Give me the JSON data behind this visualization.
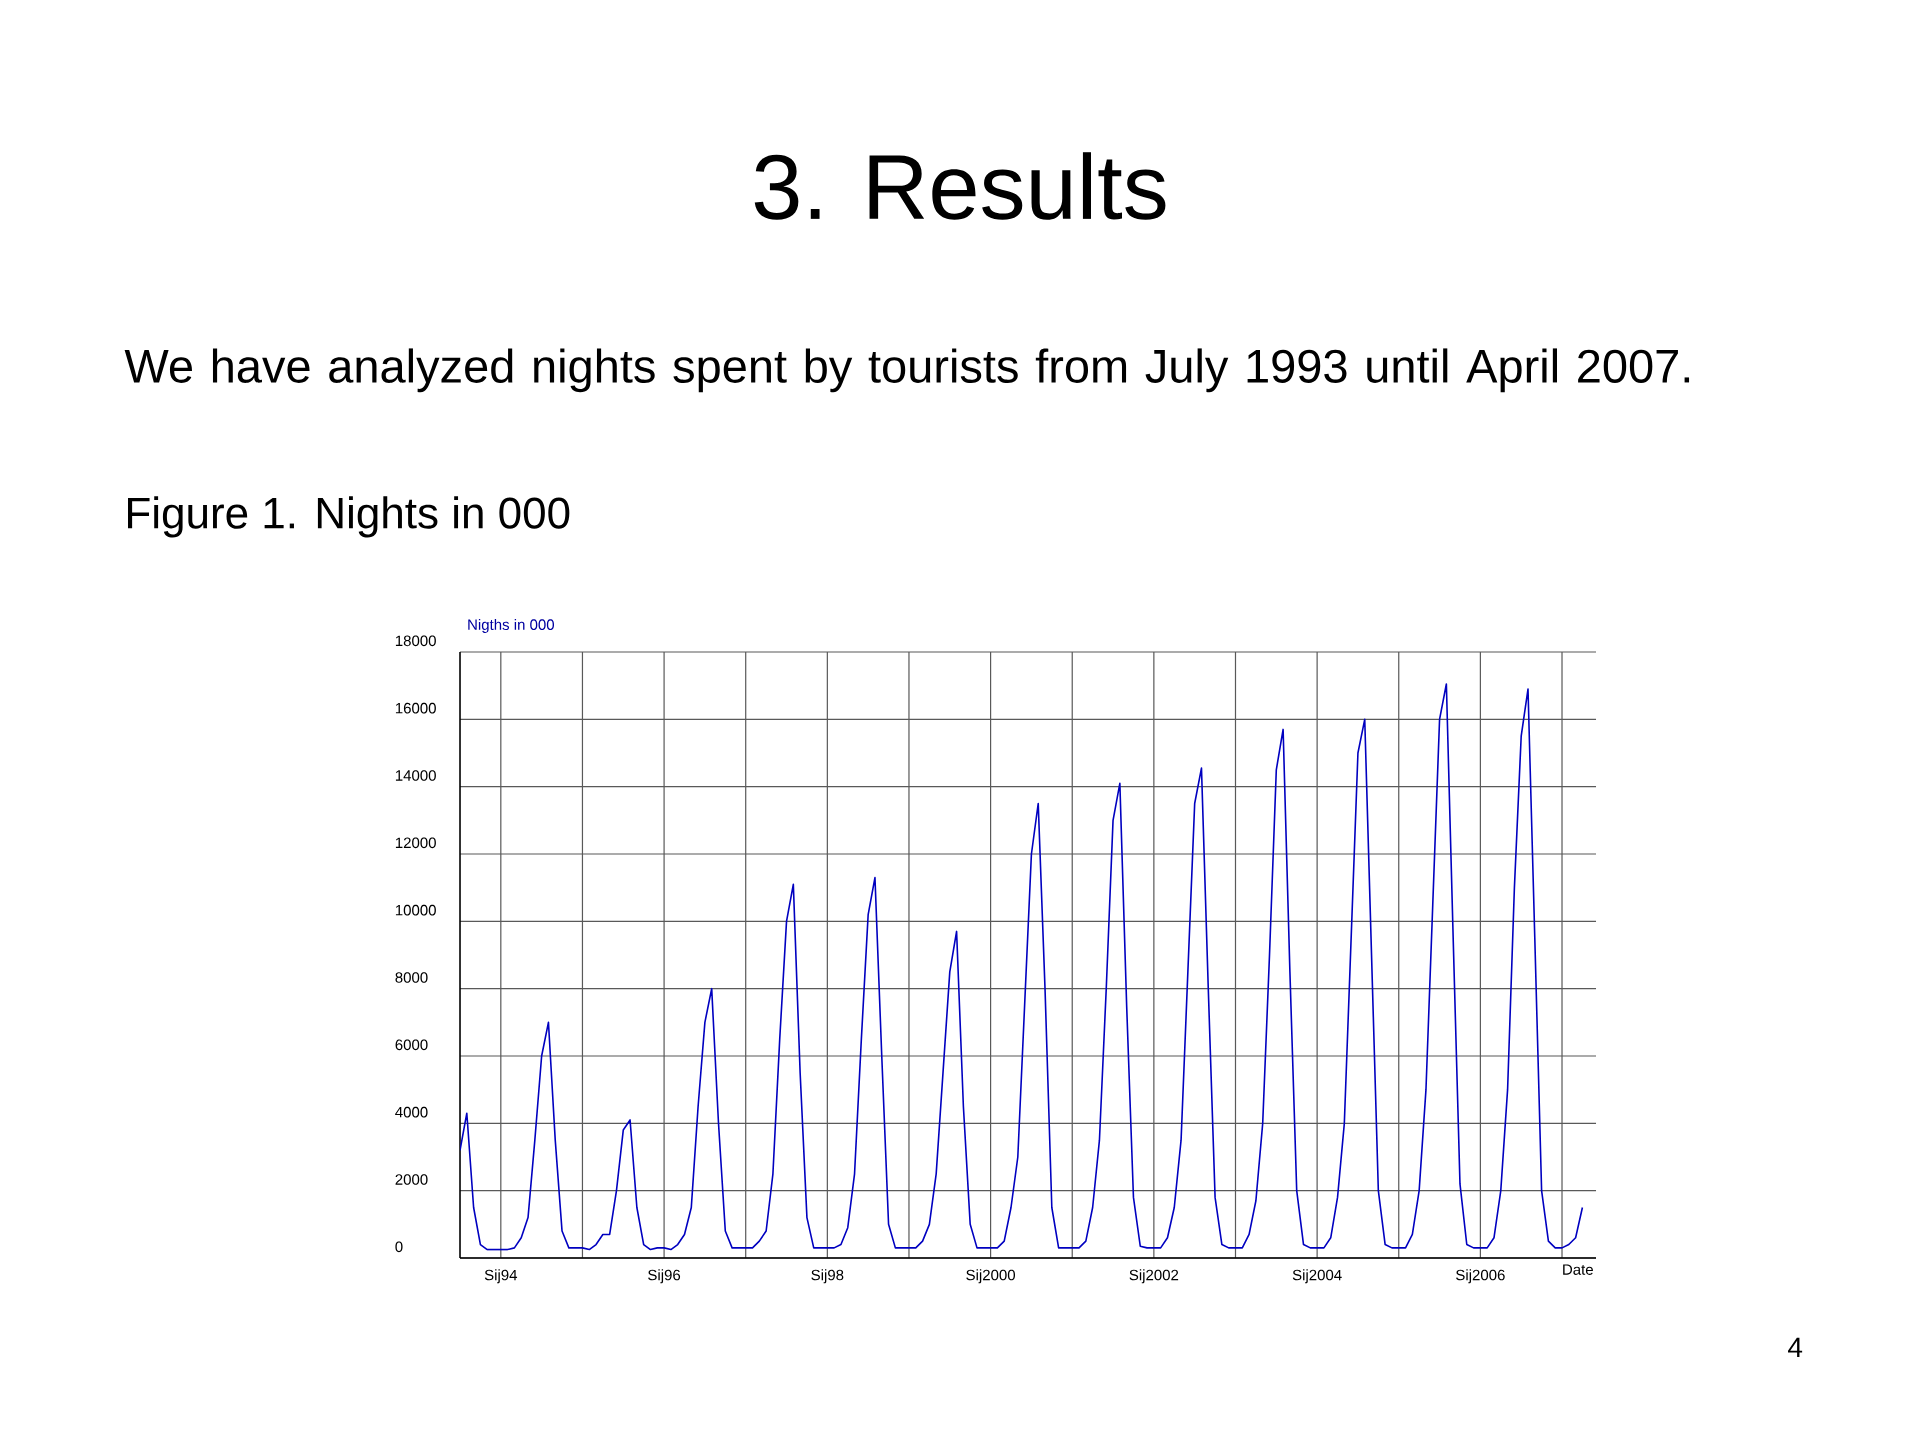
{
  "chart_data": {
    "type": "line",
    "title": "3. Results",
    "subtitle": "We have analyzed nights spent by tourists from July 1993 until April 2007.",
    "annotations": [
      "Figure 1. Nights in 000",
      "4"
    ],
    "ylabel": "Nigths in 000",
    "xlabel": "Date",
    "xlim": [
      "1993-07",
      "2007-06"
    ],
    "ylim": [
      0,
      18000
    ],
    "yticks": [
      0,
      2000,
      4000,
      6000,
      8000,
      10000,
      12000,
      14000,
      16000,
      18000
    ],
    "xticks": [
      {
        "value": "1994-01",
        "label": "Sij94"
      },
      {
        "value": "1995-01",
        "label": null
      },
      {
        "value": "1996-01",
        "label": "Sij96"
      },
      {
        "value": "1997-01",
        "label": null
      },
      {
        "value": "1998-01",
        "label": "Sij98"
      },
      {
        "value": "1999-01",
        "label": null
      },
      {
        "value": "2000-01",
        "label": "Sij2000"
      },
      {
        "value": "2001-01",
        "label": null
      },
      {
        "value": "2002-01",
        "label": "Sij2002"
      },
      {
        "value": "2003-01",
        "label": null
      },
      {
        "value": "2004-01",
        "label": "Sij2004"
      },
      {
        "value": "2005-01",
        "label": null
      },
      {
        "value": "2006-01",
        "label": "Sij2006"
      },
      {
        "value": "2007-01",
        "label": null
      }
    ],
    "grid": true,
    "marker": "none",
    "line_style": "solid",
    "x": [
      "1993-07",
      "1993-08",
      "1993-09",
      "1993-10",
      "1993-11",
      "1993-12",
      "1994-01",
      "1994-02",
      "1994-03",
      "1994-04",
      "1994-05",
      "1994-06",
      "1994-07",
      "1994-08",
      "1994-09",
      "1994-10",
      "1994-11",
      "1994-12",
      "1995-01",
      "1995-02",
      "1995-03",
      "1995-04",
      "1995-05",
      "1995-06",
      "1995-07",
      "1995-08",
      "1995-09",
      "1995-10",
      "1995-11",
      "1995-12",
      "1996-01",
      "1996-02",
      "1996-03",
      "1996-04",
      "1996-05",
      "1996-06",
      "1996-07",
      "1996-08",
      "1996-09",
      "1996-10",
      "1996-11",
      "1996-12",
      "1997-01",
      "1997-02",
      "1997-03",
      "1997-04",
      "1997-05",
      "1997-06",
      "1997-07",
      "1997-08",
      "1997-09",
      "1997-10",
      "1997-11",
      "1997-12",
      "1998-01",
      "1998-02",
      "1998-03",
      "1998-04",
      "1998-05",
      "1998-06",
      "1998-07",
      "1998-08",
      "1998-09",
      "1998-10",
      "1998-11",
      "1998-12",
      "1999-01",
      "1999-02",
      "1999-03",
      "1999-04",
      "1999-05",
      "1999-06",
      "1999-07",
      "1999-08",
      "1999-09",
      "1999-10",
      "1999-11",
      "1999-12",
      "2000-01",
      "2000-02",
      "2000-03",
      "2000-04",
      "2000-05",
      "2000-06",
      "2000-07",
      "2000-08",
      "2000-09",
      "2000-10",
      "2000-11",
      "2000-12",
      "2001-01",
      "2001-02",
      "2001-03",
      "2001-04",
      "2001-05",
      "2001-06",
      "2001-07",
      "2001-08",
      "2001-09",
      "2001-10",
      "2001-11",
      "2001-12",
      "2002-01",
      "2002-02",
      "2002-03",
      "2002-04",
      "2002-05",
      "2002-06",
      "2002-07",
      "2002-08",
      "2002-09",
      "2002-10",
      "2002-11",
      "2002-12",
      "2003-01",
      "2003-02",
      "2003-03",
      "2003-04",
      "2003-05",
      "2003-06",
      "2003-07",
      "2003-08",
      "2003-09",
      "2003-10",
      "2003-11",
      "2003-12",
      "2004-01",
      "2004-02",
      "2004-03",
      "2004-04",
      "2004-05",
      "2004-06",
      "2004-07",
      "2004-08",
      "2004-09",
      "2004-10",
      "2004-11",
      "2004-12",
      "2005-01",
      "2005-02",
      "2005-03",
      "2005-04",
      "2005-05",
      "2005-06",
      "2005-07",
      "2005-08",
      "2005-09",
      "2005-10",
      "2005-11",
      "2005-12",
      "2006-01",
      "2006-02",
      "2006-03",
      "2006-04",
      "2006-05",
      "2006-06",
      "2006-07",
      "2006-08",
      "2006-09",
      "2006-10",
      "2006-11",
      "2006-12",
      "2007-01",
      "2007-02",
      "2007-03",
      "2007-04"
    ],
    "series": [
      {
        "color": "#0000c0",
        "values": [
          3200,
          4300,
          1500,
          400,
          250,
          250,
          250,
          250,
          300,
          600,
          1200,
          3500,
          6000,
          7000,
          3500,
          800,
          300,
          300,
          300,
          250,
          400,
          700,
          700,
          2000,
          3800,
          4100,
          1500,
          400,
          250,
          300,
          300,
          250,
          400,
          700,
          1500,
          4500,
          7000,
          8000,
          4000,
          800,
          300,
          300,
          300,
          300,
          500,
          800,
          2500,
          6500,
          10000,
          11100,
          5500,
          1200,
          300,
          300,
          300,
          300,
          400,
          900,
          2500,
          6500,
          10200,
          11300,
          6000,
          1000,
          300,
          300,
          300,
          300,
          500,
          1000,
          2500,
          5500,
          8500,
          9700,
          4500,
          1000,
          300,
          300,
          300,
          300,
          500,
          1500,
          3000,
          7500,
          12000,
          13500,
          8000,
          1500,
          300,
          300,
          300,
          300,
          500,
          1500,
          3500,
          8000,
          13000,
          14100,
          7500,
          1800,
          350,
          300,
          300,
          300,
          600,
          1500,
          3500,
          8500,
          13500,
          14550,
          8000,
          1800,
          400,
          300,
          300,
          300,
          700,
          1700,
          4000,
          9000,
          14500,
          15700,
          8500,
          2000,
          400,
          300,
          300,
          300,
          600,
          1800,
          4000,
          9500,
          15000,
          16000,
          9000,
          2000,
          400,
          300,
          300,
          300,
          700,
          2000,
          5000,
          10500,
          16000,
          17050,
          9500,
          2200,
          400,
          300,
          300,
          300,
          600,
          2000,
          5000,
          11000,
          15500,
          16900,
          9500,
          2000,
          500,
          300,
          300,
          400,
          600,
          1500
        ]
      }
    ]
  }
}
